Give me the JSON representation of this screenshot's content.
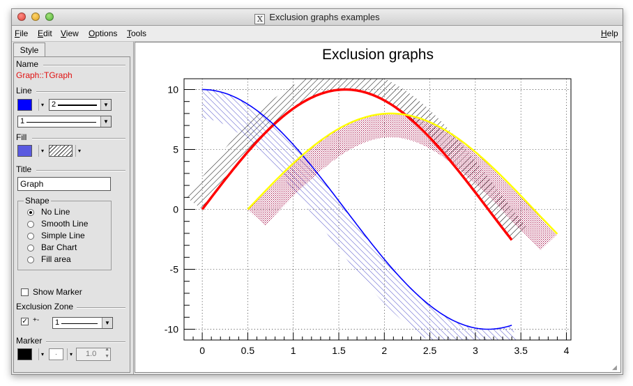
{
  "window": {
    "title": "Exclusion graphs examples"
  },
  "menu": {
    "file": "File",
    "edit": "Edit",
    "view": "View",
    "options": "Options",
    "tools": "Tools",
    "help": "Help"
  },
  "sidebar": {
    "tab": "Style",
    "name_label": "Name",
    "name_value": "Graph::TGraph",
    "line_label": "Line",
    "line_color": "#0000ff",
    "line_width": "2",
    "line_style": "1",
    "fill_label": "Fill",
    "fill_color": "#5a5ae0",
    "title_label": "Title",
    "title_value": "Graph",
    "shape_label": "Shape",
    "shapes": [
      "No Line",
      "Smooth Line",
      "Simple Line",
      "Bar Chart",
      "Fill area"
    ],
    "shape_selected": 0,
    "show_marker": "Show Marker",
    "exclusion_label": "Exclusion Zone",
    "exclusion_sign": "+-",
    "exclusion_value": "1",
    "marker_label": "Marker",
    "marker_size": "1.0"
  },
  "chart_data": {
    "type": "line",
    "title": "Exclusion graphs",
    "xlim": [
      -0.2,
      4.05
    ],
    "ylim": [
      -10.9,
      10.9
    ],
    "xticks": [
      "0",
      "0.5",
      "1",
      "1.5",
      "2",
      "2.5",
      "3",
      "3.5",
      "4"
    ],
    "yticks": [
      "10",
      "5",
      "0",
      "-5",
      "-10"
    ],
    "grid": true,
    "series": [
      {
        "function": "10*sin(x)",
        "x_range": [
          0,
          3.4
        ],
        "color": "#ff0000",
        "exclusion": "upper",
        "hatch_color": "#000000"
      },
      {
        "function": "10*cos(x)",
        "x_range": [
          0,
          3.4
        ],
        "color": "#0000ff",
        "exclusion": "lower",
        "hatch_color": "#3030c0"
      },
      {
        "function": "8*sin(x-0.5)",
        "x_range": [
          0.5,
          3.9
        ],
        "color": "#ffff00",
        "exclusion": "lower",
        "hatch_color": "#a0003c"
      }
    ]
  }
}
